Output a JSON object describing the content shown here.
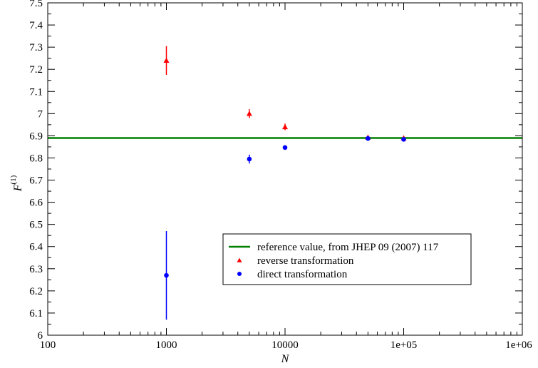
{
  "chart_data": {
    "type": "scatter",
    "title": "",
    "xlabel": "N",
    "ylabel_main": "F",
    "ylabel_sup": "(1)",
    "x_scale": "log",
    "xlim": [
      100,
      1000000
    ],
    "ylim": [
      6.0,
      7.5
    ],
    "x_ticks": [
      {
        "value": 100,
        "label": "100"
      },
      {
        "value": 1000,
        "label": "1000"
      },
      {
        "value": 10000,
        "label": "10000"
      },
      {
        "value": 100000,
        "label": "1e+05"
      },
      {
        "value": 1000000,
        "label": "1e+06"
      }
    ],
    "y_ticks": [
      {
        "value": 6.0,
        "label": "6"
      },
      {
        "value": 6.1,
        "label": "6.1"
      },
      {
        "value": 6.2,
        "label": "6.2"
      },
      {
        "value": 6.3,
        "label": "6.3"
      },
      {
        "value": 6.4,
        "label": "6.4"
      },
      {
        "value": 6.5,
        "label": "6.5"
      },
      {
        "value": 6.6,
        "label": "6.6"
      },
      {
        "value": 6.7,
        "label": "6.7"
      },
      {
        "value": 6.8,
        "label": "6.8"
      },
      {
        "value": 6.9,
        "label": "6.9"
      },
      {
        "value": 7.0,
        "label": "7"
      },
      {
        "value": 7.1,
        "label": "7.1"
      },
      {
        "value": 7.2,
        "label": "7.2"
      },
      {
        "value": 7.3,
        "label": "7.3"
      },
      {
        "value": 7.4,
        "label": "7.4"
      },
      {
        "value": 7.5,
        "label": "7.5"
      }
    ],
    "grid": false,
    "legend_position": "bottom-right",
    "reference_line": {
      "name": "reference value, from JHEP 09 (2007) 117",
      "y": 6.89,
      "color": "#008000"
    },
    "series": [
      {
        "name": "reverse transformation",
        "marker": "triangle",
        "color": "#ff0000",
        "points": [
          {
            "x": 1000,
            "y": 7.24,
            "err": 0.065
          },
          {
            "x": 5000,
            "y": 7.0,
            "err": 0.02
          },
          {
            "x": 10000,
            "y": 6.94,
            "err": 0.015
          },
          {
            "x": 50000,
            "y": 6.893,
            "err": 0.007
          },
          {
            "x": 100000,
            "y": 6.89,
            "err": 0.007
          }
        ]
      },
      {
        "name": "direct transformation",
        "marker": "circle",
        "color": "#0000ff",
        "points": [
          {
            "x": 1000,
            "y": 6.27,
            "err": 0.2
          },
          {
            "x": 5000,
            "y": 6.795,
            "err": 0.02
          },
          {
            "x": 10000,
            "y": 6.847,
            "err": 0.01
          },
          {
            "x": 50000,
            "y": 6.888,
            "err": 0.006
          },
          {
            "x": 100000,
            "y": 6.884,
            "err": 0.006
          }
        ]
      }
    ]
  }
}
